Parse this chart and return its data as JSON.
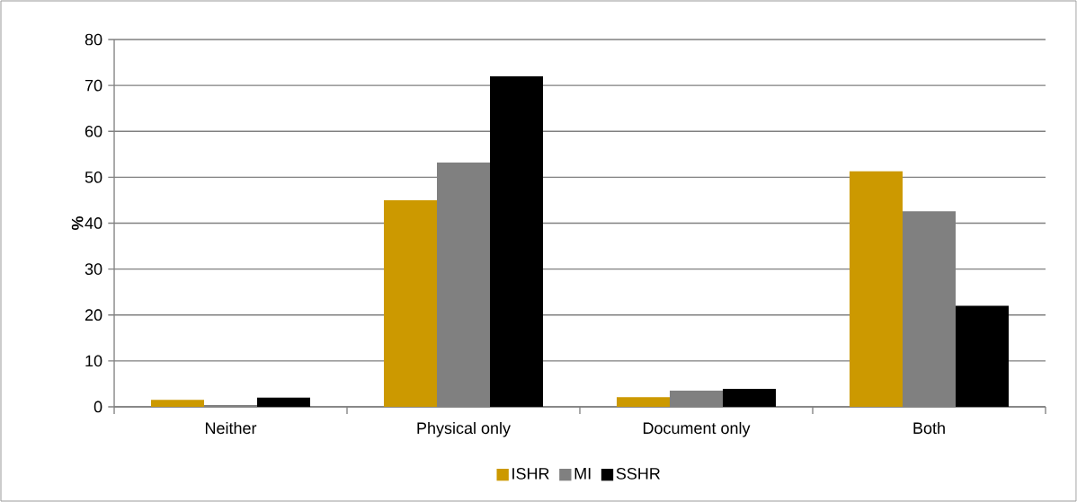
{
  "chart_data": {
    "type": "bar",
    "ylabel": "%",
    "categories": [
      "Neither",
      "Physical only",
      "Document only",
      "Both"
    ],
    "series": [
      {
        "name": "ISHR",
        "color": "#cc9900",
        "values": [
          1.5,
          45,
          2.1,
          51.3
        ]
      },
      {
        "name": "MI",
        "color": "#808080",
        "values": [
          0.4,
          53.2,
          3.5,
          42.6
        ]
      },
      {
        "name": "SSHR",
        "color": "#000000",
        "values": [
          2.0,
          72,
          3.9,
          22
        ]
      }
    ],
    "ylim": [
      0,
      80
    ],
    "yticks": [
      0,
      10,
      20,
      30,
      40,
      50,
      60,
      70,
      80
    ],
    "grid": "y",
    "legend": "bottom"
  }
}
